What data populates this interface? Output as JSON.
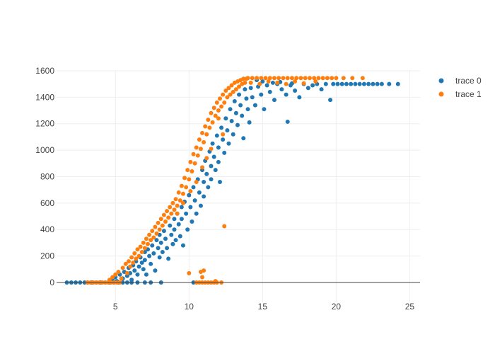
{
  "chart_data": {
    "type": "scatter",
    "title": "",
    "xlabel": "",
    "ylabel": "",
    "xlim": [
      1.0,
      25.7
    ],
    "ylim": [
      -150,
      1600
    ],
    "xticks": [
      5,
      10,
      15,
      20,
      25
    ],
    "yticks": [
      0,
      200,
      400,
      600,
      800,
      1000,
      1200,
      1400,
      1600
    ],
    "grid": true,
    "legend_position": "top-right",
    "series": [
      {
        "name": "trace 0",
        "color": "#1f77b4",
        "points": [
          [
            1.7,
            0
          ],
          [
            2.0,
            0
          ],
          [
            2.3,
            0
          ],
          [
            2.6,
            0
          ],
          [
            2.9,
            0
          ],
          [
            3.1,
            0
          ],
          [
            3.4,
            0
          ],
          [
            3.7,
            0
          ],
          [
            4.0,
            0
          ],
          [
            4.3,
            0
          ],
          [
            4.6,
            0
          ],
          [
            4.9,
            0
          ],
          [
            5.2,
            0
          ],
          [
            5.5,
            0
          ],
          [
            5.8,
            0
          ],
          [
            6.1,
            0
          ],
          [
            6.5,
            0
          ],
          [
            7.0,
            0
          ],
          [
            7.4,
            0
          ],
          [
            8.1,
            0
          ],
          [
            10.3,
            0
          ],
          [
            4.8,
            20
          ],
          [
            5.0,
            40
          ],
          [
            5.1,
            10
          ],
          [
            5.3,
            60
          ],
          [
            5.5,
            30
          ],
          [
            5.6,
            80
          ],
          [
            5.8,
            50
          ],
          [
            5.9,
            110
          ],
          [
            6.0,
            70
          ],
          [
            6.1,
            20
          ],
          [
            6.2,
            130
          ],
          [
            6.3,
            90
          ],
          [
            6.4,
            160
          ],
          [
            6.5,
            60
          ],
          [
            6.6,
            120
          ],
          [
            6.7,
            190
          ],
          [
            6.8,
            150
          ],
          [
            6.9,
            100
          ],
          [
            7.0,
            230
          ],
          [
            7.0,
            170
          ],
          [
            7.1,
            60
          ],
          [
            7.2,
            250
          ],
          [
            7.3,
            200
          ],
          [
            7.4,
            140
          ],
          [
            7.5,
            280
          ],
          [
            7.6,
            220
          ],
          [
            7.7,
            90
          ],
          [
            7.8,
            320
          ],
          [
            7.9,
            260
          ],
          [
            8.0,
            190
          ],
          [
            8.0,
            360
          ],
          [
            8.1,
            300
          ],
          [
            8.2,
            230
          ],
          [
            8.3,
            390
          ],
          [
            8.4,
            330
          ],
          [
            8.5,
            260
          ],
          [
            8.6,
            180
          ],
          [
            8.7,
            430
          ],
          [
            8.8,
            360
          ],
          [
            8.9,
            290
          ],
          [
            9.0,
            480
          ],
          [
            9.0,
            400
          ],
          [
            9.1,
            320
          ],
          [
            9.2,
            520
          ],
          [
            9.3,
            440
          ],
          [
            9.4,
            350
          ],
          [
            9.5,
            570
          ],
          [
            9.5,
            480
          ],
          [
            9.6,
            280
          ],
          [
            9.7,
            610
          ],
          [
            9.8,
            520
          ],
          [
            9.9,
            400
          ],
          [
            10.0,
            660
          ],
          [
            10.1,
            570
          ],
          [
            10.2,
            460
          ],
          [
            10.3,
            720
          ],
          [
            10.4,
            620
          ],
          [
            10.5,
            520
          ],
          [
            10.6,
            780
          ],
          [
            10.7,
            680
          ],
          [
            10.8,
            580
          ],
          [
            10.9,
            850
          ],
          [
            11.0,
            760
          ],
          [
            11.0,
            650
          ],
          [
            11.1,
            920
          ],
          [
            11.2,
            820
          ],
          [
            11.3,
            720
          ],
          [
            11.4,
            990
          ],
          [
            11.5,
            880
          ],
          [
            11.5,
            780
          ],
          [
            11.6,
            1050
          ],
          [
            11.7,
            950
          ],
          [
            11.8,
            850
          ],
          [
            11.9,
            1110
          ],
          [
            12.0,
            1020
          ],
          [
            12.0,
            910
          ],
          [
            12.1,
            760
          ],
          [
            12.2,
            1170
          ],
          [
            12.3,
            1080
          ],
          [
            12.4,
            980
          ],
          [
            12.5,
            1240
          ],
          [
            12.6,
            1150
          ],
          [
            12.7,
            1050
          ],
          [
            12.8,
            1310
          ],
          [
            12.9,
            1220
          ],
          [
            13.0,
            1120
          ],
          [
            13.1,
            1370
          ],
          [
            13.2,
            1280
          ],
          [
            13.3,
            1190
          ],
          [
            13.4,
            1420
          ],
          [
            13.5,
            1340
          ],
          [
            13.6,
            1260
          ],
          [
            13.7,
            1090
          ],
          [
            13.8,
            1460
          ],
          [
            13.9,
            1390
          ],
          [
            14.0,
            1310
          ],
          [
            14.1,
            1210
          ],
          [
            14.2,
            1470
          ],
          [
            14.3,
            1400
          ],
          [
            14.5,
            1340
          ],
          [
            14.7,
            1480
          ],
          [
            14.9,
            1420
          ],
          [
            15.1,
            1310
          ],
          [
            15.3,
            1490
          ],
          [
            15.5,
            1440
          ],
          [
            15.8,
            1380
          ],
          [
            16.0,
            1500
          ],
          [
            16.3,
            1460
          ],
          [
            16.6,
            1420
          ],
          [
            16.7,
            1215
          ],
          [
            16.9,
            1490
          ],
          [
            17.2,
            1450
          ],
          [
            17.5,
            1400
          ],
          [
            17.8,
            1500
          ],
          [
            18.1,
            1470
          ],
          [
            18.4,
            1490
          ],
          [
            18.7,
            1500
          ],
          [
            19.0,
            1460
          ],
          [
            19.3,
            1500
          ],
          [
            19.6,
            1380
          ],
          [
            19.8,
            1500
          ],
          [
            20.1,
            1500
          ],
          [
            20.4,
            1500
          ],
          [
            20.7,
            1500
          ],
          [
            21.0,
            1500
          ],
          [
            21.3,
            1500
          ],
          [
            21.6,
            1500
          ],
          [
            21.9,
            1500
          ],
          [
            22.2,
            1500
          ],
          [
            22.5,
            1500
          ],
          [
            22.8,
            1500
          ],
          [
            23.1,
            1500
          ],
          [
            23.6,
            1500
          ],
          [
            24.2,
            1500
          ],
          [
            14.6,
            1530
          ],
          [
            15.0,
            1520
          ],
          [
            15.7,
            1510
          ],
          [
            16.2,
            1515
          ],
          [
            17.0,
            1505
          ]
        ]
      },
      {
        "name": "trace 1",
        "color": "#ff7f0e",
        "points": [
          [
            3.1,
            0
          ],
          [
            3.3,
            0
          ],
          [
            3.5,
            0
          ],
          [
            3.7,
            0
          ],
          [
            3.9,
            0
          ],
          [
            4.1,
            0
          ],
          [
            4.3,
            0
          ],
          [
            4.5,
            0
          ],
          [
            4.7,
            0
          ],
          [
            4.9,
            0
          ],
          [
            5.1,
            0
          ],
          [
            5.3,
            0
          ],
          [
            10.5,
            0
          ],
          [
            10.7,
            0
          ],
          [
            10.9,
            0
          ],
          [
            11.1,
            0
          ],
          [
            11.3,
            0
          ],
          [
            11.5,
            0
          ],
          [
            11.7,
            0
          ],
          [
            11.9,
            0
          ],
          [
            12.2,
            0
          ],
          [
            10.8,
            80
          ],
          [
            11.0,
            90
          ],
          [
            10.9,
            40
          ],
          [
            11.8,
            10
          ],
          [
            12.4,
            425
          ],
          [
            10.0,
            70
          ],
          [
            4.6,
            20
          ],
          [
            4.8,
            40
          ],
          [
            5.0,
            60
          ],
          [
            5.2,
            80
          ],
          [
            5.4,
            30
          ],
          [
            5.5,
            110
          ],
          [
            5.7,
            140
          ],
          [
            5.8,
            70
          ],
          [
            5.9,
            160
          ],
          [
            6.0,
            120
          ],
          [
            6.1,
            190
          ],
          [
            6.2,
            150
          ],
          [
            6.3,
            220
          ],
          [
            6.4,
            180
          ],
          [
            6.5,
            250
          ],
          [
            6.6,
            200
          ],
          [
            6.7,
            270
          ],
          [
            6.8,
            230
          ],
          [
            6.9,
            300
          ],
          [
            7.0,
            260
          ],
          [
            7.1,
            330
          ],
          [
            7.2,
            290
          ],
          [
            7.3,
            360
          ],
          [
            7.4,
            320
          ],
          [
            7.5,
            390
          ],
          [
            7.6,
            340
          ],
          [
            7.7,
            420
          ],
          [
            7.8,
            370
          ],
          [
            7.9,
            450
          ],
          [
            8.0,
            400
          ],
          [
            8.1,
            480
          ],
          [
            8.2,
            430
          ],
          [
            8.3,
            510
          ],
          [
            8.4,
            460
          ],
          [
            8.5,
            540
          ],
          [
            8.6,
            490
          ],
          [
            8.7,
            570
          ],
          [
            8.8,
            520
          ],
          [
            8.9,
            600
          ],
          [
            9.0,
            550
          ],
          [
            9.1,
            630
          ],
          [
            9.2,
            580
          ],
          [
            9.3,
            680
          ],
          [
            9.4,
            620
          ],
          [
            9.5,
            730
          ],
          [
            9.6,
            670
          ],
          [
            9.7,
            790
          ],
          [
            9.8,
            720
          ],
          [
            9.9,
            850
          ],
          [
            10.0,
            780
          ],
          [
            10.1,
            910
          ],
          [
            10.2,
            840
          ],
          [
            10.3,
            970
          ],
          [
            10.4,
            900
          ],
          [
            10.5,
            1020
          ],
          [
            10.6,
            960
          ],
          [
            10.7,
            1080
          ],
          [
            10.8,
            1010
          ],
          [
            10.9,
            1130
          ],
          [
            11.0,
            1060
          ],
          [
            11.1,
            1180
          ],
          [
            11.2,
            1120
          ],
          [
            11.3,
            1230
          ],
          [
            11.4,
            1170
          ],
          [
            11.5,
            1280
          ],
          [
            11.6,
            1210
          ],
          [
            11.7,
            1320
          ],
          [
            11.8,
            1260
          ],
          [
            11.9,
            1360
          ],
          [
            12.0,
            1300
          ],
          [
            12.1,
            1390
          ],
          [
            12.2,
            1330
          ],
          [
            12.3,
            1420
          ],
          [
            12.4,
            1360
          ],
          [
            12.5,
            1450
          ],
          [
            12.6,
            1400
          ],
          [
            12.7,
            1470
          ],
          [
            12.8,
            1420
          ],
          [
            12.9,
            1490
          ],
          [
            13.0,
            1440
          ],
          [
            13.1,
            1510
          ],
          [
            13.2,
            1460
          ],
          [
            13.3,
            1520
          ],
          [
            13.4,
            1480
          ],
          [
            13.5,
            1530
          ],
          [
            13.6,
            1500
          ],
          [
            13.7,
            1540
          ],
          [
            13.8,
            1510
          ],
          [
            13.9,
            1540
          ],
          [
            14.0,
            1545
          ],
          [
            14.3,
            1545
          ],
          [
            14.6,
            1545
          ],
          [
            14.9,
            1545
          ],
          [
            15.2,
            1545
          ],
          [
            15.5,
            1545
          ],
          [
            15.8,
            1545
          ],
          [
            16.1,
            1545
          ],
          [
            16.4,
            1545
          ],
          [
            16.7,
            1545
          ],
          [
            17.0,
            1545
          ],
          [
            17.3,
            1545
          ],
          [
            17.6,
            1545
          ],
          [
            17.9,
            1545
          ],
          [
            18.2,
            1545
          ],
          [
            18.5,
            1545
          ],
          [
            18.8,
            1545
          ],
          [
            19.1,
            1545
          ],
          [
            19.4,
            1545
          ],
          [
            19.7,
            1545
          ],
          [
            20.0,
            1545
          ],
          [
            20.5,
            1545
          ],
          [
            21.1,
            1545
          ],
          [
            21.8,
            1545
          ],
          [
            14.2,
            1510
          ],
          [
            14.8,
            1500
          ],
          [
            15.4,
            1520
          ],
          [
            16.0,
            1510
          ],
          [
            16.6,
            1500
          ],
          [
            17.2,
            1520
          ],
          [
            17.8,
            1505
          ],
          [
            18.6,
            1520
          ],
          [
            12.0,
            1240
          ],
          [
            12.3,
            1120
          ],
          [
            11.5,
            1010
          ],
          [
            11.2,
            940
          ],
          [
            10.9,
            870
          ],
          [
            10.5,
            760
          ],
          [
            10.1,
            690
          ],
          [
            9.6,
            600
          ],
          [
            9.2,
            520
          ]
        ]
      }
    ]
  }
}
